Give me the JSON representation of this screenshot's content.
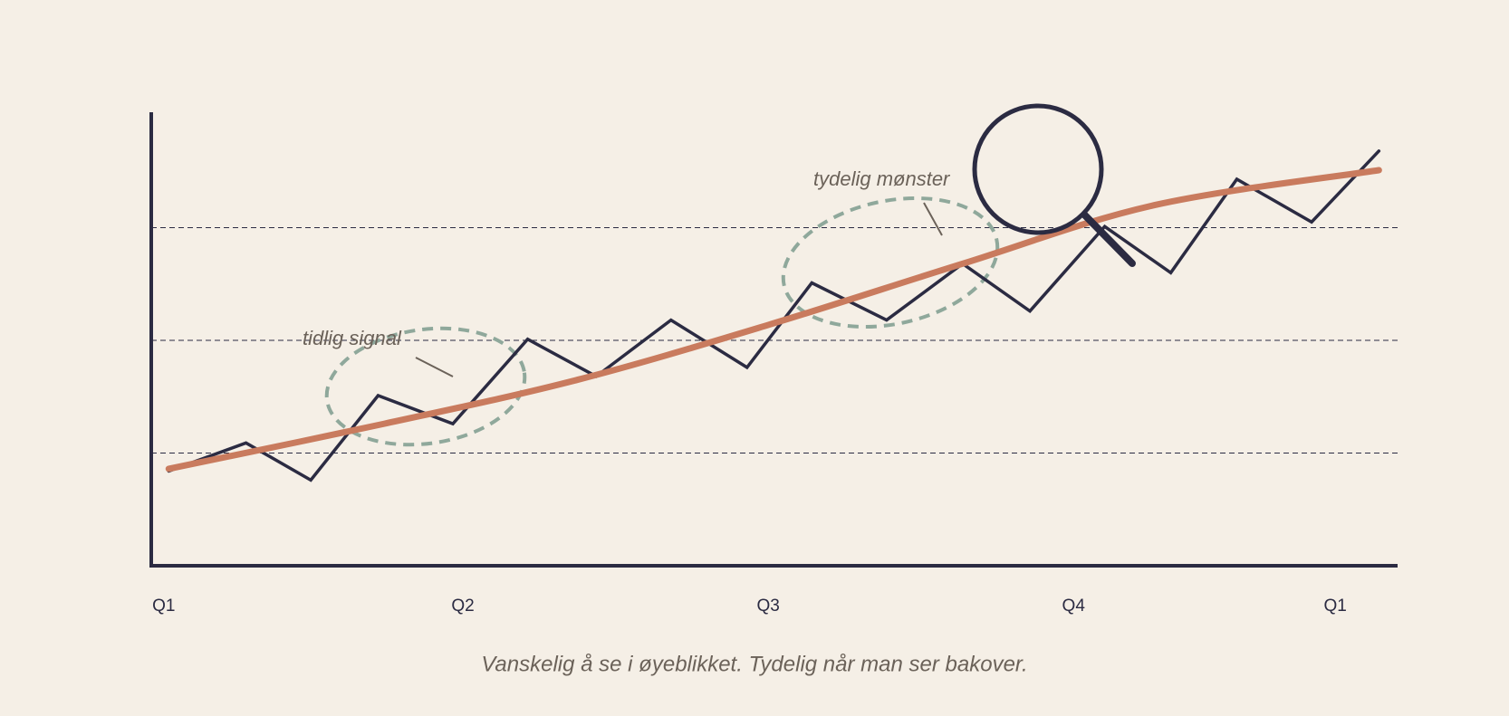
{
  "chart_data": {
    "type": "line",
    "xlim": [
      0,
      100
    ],
    "xticks": [
      {
        "value": 1,
        "label": "Q1"
      },
      {
        "value": 25,
        "label": "Q2"
      },
      {
        "value": 49.5,
        "label": "Q3"
      },
      {
        "value": 74,
        "label": "Q4"
      },
      {
        "value": 95,
        "label": "Q1"
      }
    ],
    "ylim": [
      0,
      4
    ],
    "yticks": [
      1,
      2,
      3
    ],
    "grid": true,
    "series": [
      {
        "color": "#2b2b42",
        "x": [
          1.4,
          7.6,
          12.8,
          18.2,
          24.2,
          30.2,
          35.7,
          41.7,
          47.8,
          53.0,
          59.0,
          65.1,
          70.5,
          76.5,
          81.8,
          87.1,
          93.1,
          98.5
        ],
        "values": [
          0.84,
          1.09,
          0.76,
          1.51,
          1.26,
          2.01,
          1.68,
          2.18,
          1.76,
          2.51,
          2.18,
          2.68,
          2.26,
          3.01,
          2.6,
          3.43,
          3.05,
          3.68
        ]
      },
      {
        "color": "#c97b5e",
        "x": [
          1.4,
          18.7,
          34.2,
          49.6,
          65.1,
          80.5,
          98.5
        ],
        "values": [
          0.86,
          1.26,
          1.65,
          2.14,
          2.68,
          3.2,
          3.51
        ]
      }
    ],
    "annotations": [
      "tidlig signal",
      "tydelig mønster"
    ],
    "caption": "Vanskelig å se i øyeblikket. Tydelig når man ser bakover."
  }
}
